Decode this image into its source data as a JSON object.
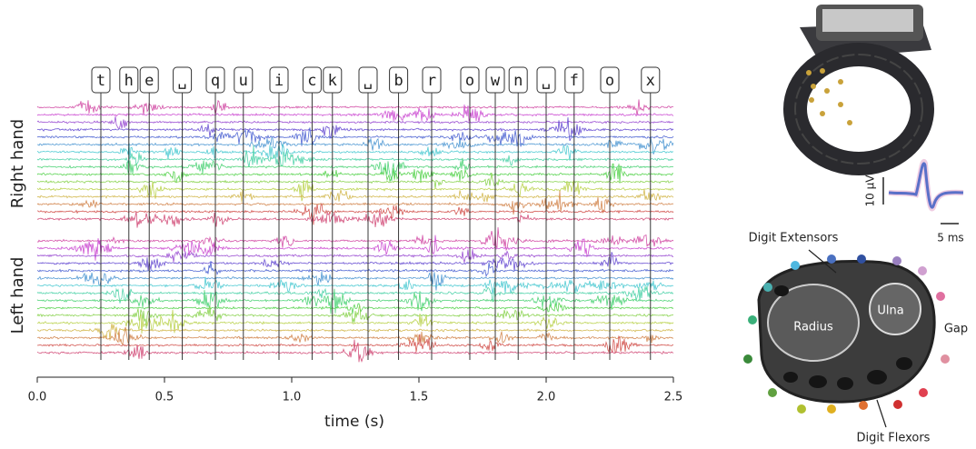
{
  "chart_data": {
    "type": "raster",
    "xlabel": "time (s)",
    "group_labels": [
      "Right hand",
      "Left hand"
    ],
    "xlim": [
      0,
      2.5
    ],
    "xticks": [
      {
        "value": 0,
        "label": "0.0"
      },
      0.5,
      {
        "value": 1,
        "label": "1.0"
      },
      1.5,
      {
        "value": 2,
        "label": "2.0"
      },
      2.5
    ],
    "events": [
      {
        "key": "t",
        "time": 0.25
      },
      {
        "key": "h",
        "time": 0.36
      },
      {
        "key": "e",
        "time": 0.44
      },
      {
        "key": "␣",
        "time": 0.57
      },
      {
        "key": "q",
        "time": 0.7
      },
      {
        "key": "u",
        "time": 0.81
      },
      {
        "key": "i",
        "time": 0.95
      },
      {
        "key": "c",
        "time": 1.08
      },
      {
        "key": "k",
        "time": 1.16
      },
      {
        "key": "␣",
        "time": 1.3
      },
      {
        "key": "b",
        "time": 1.42
      },
      {
        "key": "r",
        "time": 1.55
      },
      {
        "key": "o",
        "time": 1.7
      },
      {
        "key": "w",
        "time": 1.8
      },
      {
        "key": "n",
        "time": 1.89
      },
      {
        "key": "␣",
        "time": 2.0
      },
      {
        "key": "f",
        "time": 2.11
      },
      {
        "key": "o",
        "time": 2.25
      },
      {
        "key": "x",
        "time": 2.41
      }
    ]
  },
  "inset": {
    "amplitude_scale": "10 µV",
    "time_scale": "5 ms",
    "anatomy": {
      "top": "Digit Extensors",
      "left_bone": "Radius",
      "right_bone": "Ulna",
      "side": "Gap",
      "bottom": "Digit Flexors"
    }
  }
}
